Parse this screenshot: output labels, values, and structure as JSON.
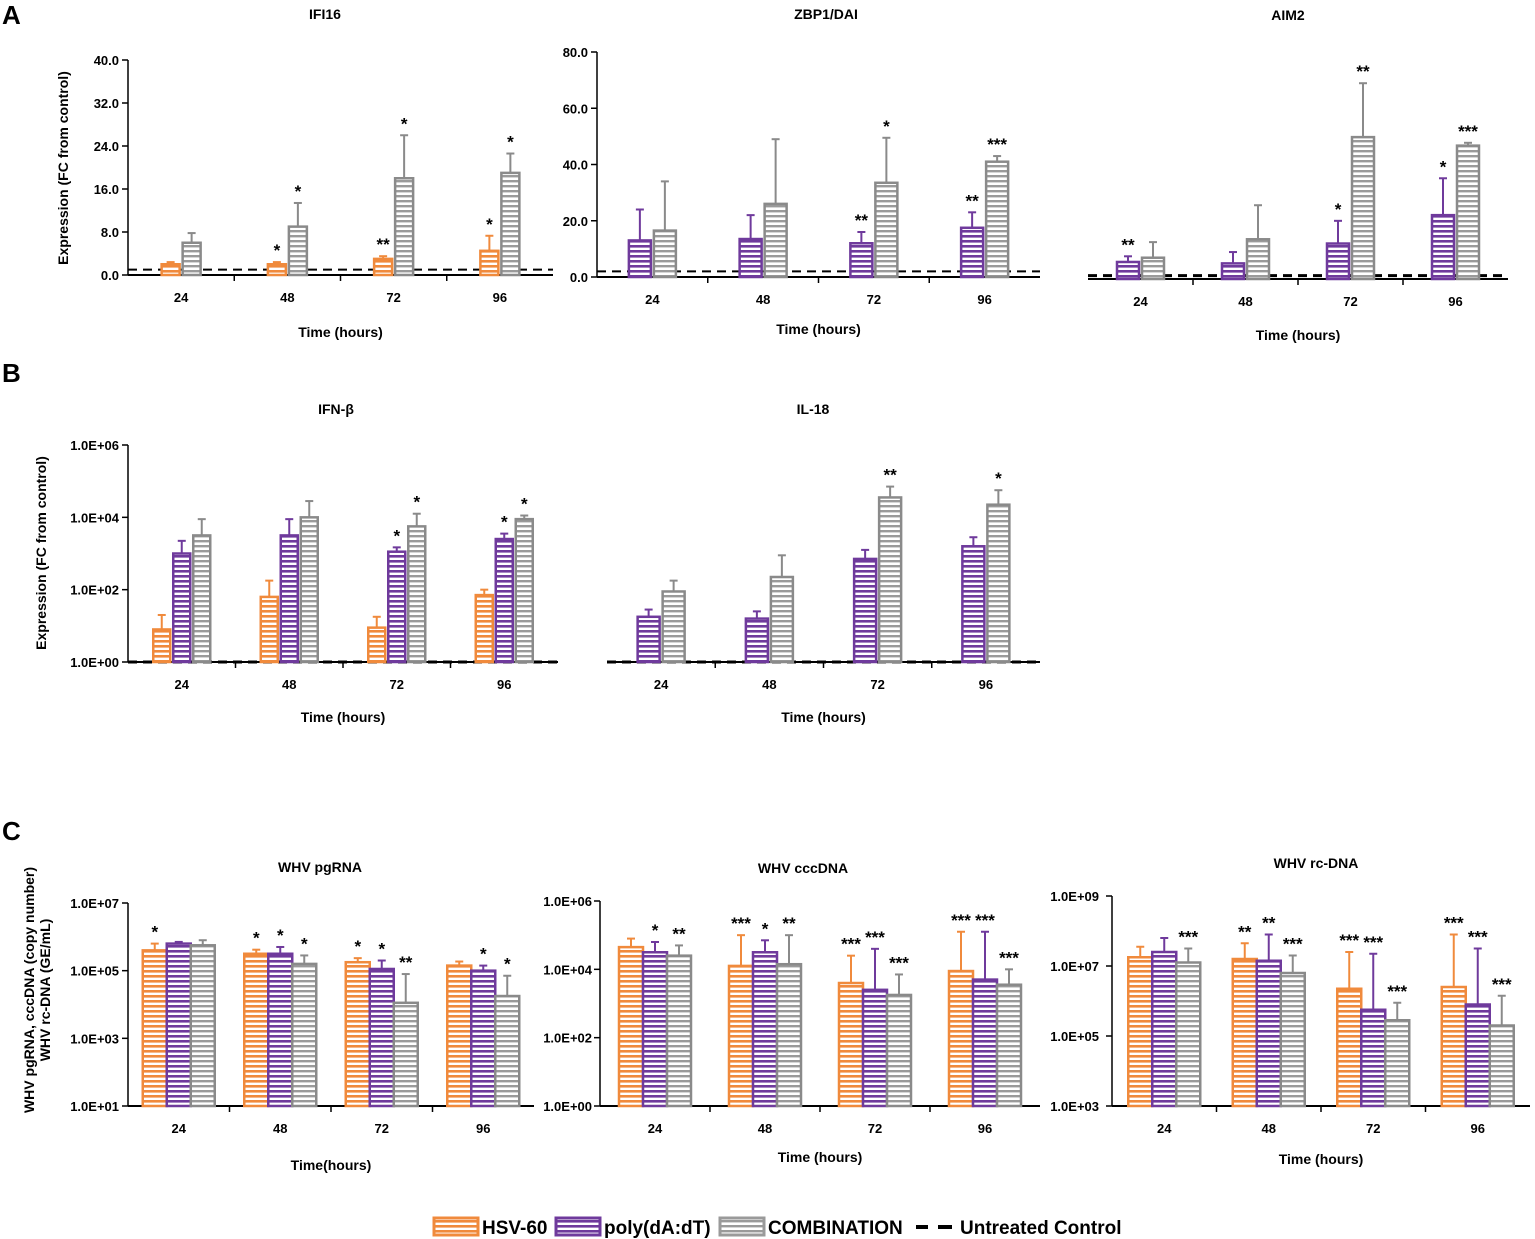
{
  "panels": [
    "A",
    "B",
    "C"
  ],
  "colors": {
    "hsv": "#f08a3c",
    "poly": "#6f3a9c",
    "combo": "#8a8a8a",
    "control": "#000000"
  },
  "legend": [
    {
      "key": "hsv",
      "label": "HSV-60"
    },
    {
      "key": "poly",
      "label": "poly(dA:dT)"
    },
    {
      "key": "combo",
      "label": "COMBINATION"
    },
    {
      "key": "control",
      "label": "Untreated Control"
    }
  ],
  "chart_data": [
    {
      "id": "ifi16",
      "type": "bar",
      "panel": "A",
      "title": "IFI16",
      "scale": "linear",
      "ylim": [
        0,
        40
      ],
      "yticks": [
        "0.0",
        "8.0",
        "16.0",
        "24.0",
        "32.0",
        "40.0"
      ],
      "ylabel": "Expression (FC from control)",
      "xlabel": "Time (hours)",
      "categories": [
        "24",
        "48",
        "72",
        "96"
      ],
      "control": 1.0,
      "series": [
        {
          "name": "HSV-60",
          "key": "hsv",
          "values": [
            2.0,
            2.0,
            3.0,
            4.5
          ],
          "errors": [
            0.4,
            0.4,
            0.5,
            2.8
          ],
          "sig": [
            "",
            "*",
            "**",
            "*"
          ]
        },
        {
          "name": "COMBINATION",
          "key": "combo",
          "values": [
            6.0,
            9.0,
            18.0,
            19.0
          ],
          "errors": [
            1.8,
            4.4,
            8.0,
            3.6
          ],
          "sig": [
            "",
            "*",
            "*",
            "*"
          ]
        }
      ]
    },
    {
      "id": "zbp1",
      "type": "bar",
      "panel": "A",
      "title": "ZBP1/DAI",
      "scale": "linear",
      "ylim": [
        0,
        80
      ],
      "yticks": [
        "0.0",
        "20.0",
        "40.0",
        "60.0",
        "80.0"
      ],
      "ylabel": "",
      "xlabel": "Time (hours)",
      "categories": [
        "24",
        "48",
        "72",
        "96"
      ],
      "control": 2.0,
      "series": [
        {
          "name": "poly(dA:dT)",
          "key": "poly",
          "values": [
            13.0,
            13.5,
            12.0,
            17.5
          ],
          "errors": [
            11.0,
            8.5,
            4.0,
            5.5
          ],
          "sig": [
            "",
            "",
            "**",
            "**"
          ]
        },
        {
          "name": "COMBINATION",
          "key": "combo",
          "values": [
            16.5,
            26.0,
            33.5,
            41.0
          ],
          "errors": [
            17.5,
            23.0,
            16.0,
            2.0
          ],
          "sig": [
            "",
            "",
            "*",
            "***"
          ]
        }
      ]
    },
    {
      "id": "aim2",
      "type": "bar",
      "panel": "A",
      "title": "AIM2",
      "scale": "linear",
      "ylim": [
        0,
        80
      ],
      "yticks": [],
      "ylabel": "",
      "xlabel": "Time (hours)",
      "categories": [
        "24",
        "48",
        "72",
        "96"
      ],
      "control": 1.2,
      "series": [
        {
          "name": "poly(dA:dT)",
          "key": "poly",
          "values": [
            6.0,
            5.5,
            12.5,
            22.5
          ],
          "errors": [
            2.0,
            4.0,
            8.0,
            13.0
          ],
          "sig": [
            "**",
            "",
            "*",
            "*"
          ]
        },
        {
          "name": "COMBINATION",
          "key": "combo",
          "values": [
            7.5,
            14.0,
            50.0,
            47.0
          ],
          "errors": [
            5.5,
            12.0,
            19.0,
            1.0
          ],
          "sig": [
            "",
            "",
            "**",
            "***"
          ]
        }
      ]
    },
    {
      "id": "ifnb",
      "type": "bar",
      "panel": "B",
      "title": "IFN-β",
      "scale": "log",
      "ylim": [
        0,
        6
      ],
      "yticks": [
        "1.0E+00",
        "1.0E+02",
        "1.0E+04",
        "1.0E+06"
      ],
      "ylabel": "Expression (FC from control)",
      "xlabel": "Time (hours)",
      "categories": [
        "24",
        "48",
        "72",
        "96"
      ],
      "control": 0,
      "series": [
        {
          "name": "HSV-60",
          "key": "hsv",
          "values": [
            0.9,
            1.8,
            0.95,
            1.85
          ],
          "errors": [
            0.4,
            0.45,
            0.3,
            0.15
          ],
          "sig": [
            "",
            "",
            "",
            ""
          ]
        },
        {
          "name": "poly(dA:dT)",
          "key": "poly",
          "values": [
            3.0,
            3.5,
            3.05,
            3.4
          ],
          "errors": [
            0.35,
            0.45,
            0.12,
            0.15
          ],
          "sig": [
            "",
            "",
            "*",
            "*"
          ]
        },
        {
          "name": "COMBINATION",
          "key": "combo",
          "values": [
            3.5,
            4.0,
            3.75,
            3.95
          ],
          "errors": [
            0.45,
            0.45,
            0.35,
            0.1
          ],
          "sig": [
            "",
            "",
            "*",
            "*"
          ]
        }
      ]
    },
    {
      "id": "il18",
      "type": "bar",
      "panel": "B",
      "title": "IL-18",
      "scale": "log",
      "ylim": [
        0,
        6
      ],
      "yticks": [],
      "ylabel": "",
      "xlabel": "Time (hours)",
      "categories": [
        "24",
        "48",
        "72",
        "96"
      ],
      "control": 0,
      "series": [
        {
          "name": "poly(dA:dT)",
          "key": "poly",
          "values": [
            1.25,
            1.2,
            2.85,
            3.2
          ],
          "errors": [
            0.2,
            0.2,
            0.25,
            0.25
          ],
          "sig": [
            "",
            "",
            "",
            ""
          ]
        },
        {
          "name": "COMBINATION",
          "key": "combo",
          "values": [
            1.95,
            2.35,
            4.55,
            4.35
          ],
          "errors": [
            0.3,
            0.6,
            0.3,
            0.4
          ],
          "sig": [
            "",
            "",
            "**",
            "*"
          ]
        }
      ]
    },
    {
      "id": "pgrna",
      "type": "bar",
      "panel": "C",
      "title": "WHV pgRNA",
      "scale": "log",
      "ylim": [
        1,
        7
      ],
      "yticks": [
        "1.0E+01",
        "1.0E+03",
        "1.0E+05",
        "1.0E+07"
      ],
      "ylabel": "WHV pgRNA, cccDNA (copy number)\nWHV rc-DNA (GE/mL)",
      "xlabel": "Time(hours)",
      "categories": [
        "24",
        "48",
        "72",
        "96"
      ],
      "control": null,
      "series": [
        {
          "name": "HSV-60",
          "key": "hsv",
          "values": [
            5.6,
            5.5,
            5.25,
            5.15
          ],
          "errors": [
            0.2,
            0.12,
            0.12,
            0.12
          ],
          "sig": [
            "*",
            "*",
            "*",
            ""
          ]
        },
        {
          "name": "poly(dA:dT)",
          "key": "poly",
          "values": [
            5.8,
            5.5,
            5.05,
            5.0
          ],
          "errors": [
            0.05,
            0.2,
            0.25,
            0.15
          ],
          "sig": [
            "",
            "*",
            "*",
            "*"
          ]
        },
        {
          "name": "COMBINATION",
          "key": "combo",
          "values": [
            5.75,
            5.2,
            4.05,
            4.25
          ],
          "errors": [
            0.15,
            0.25,
            0.85,
            0.6
          ],
          "sig": [
            "",
            "*",
            "**",
            "*"
          ]
        }
      ]
    },
    {
      "id": "cccdna",
      "type": "bar",
      "panel": "C",
      "title": "WHV cccDNA",
      "scale": "log",
      "ylim": [
        0,
        6
      ],
      "yticks": [
        "1.0E+00",
        "1.0E+02",
        "1.0E+04",
        "1.0E+06"
      ],
      "ylabel": "",
      "xlabel": "Time (hours)",
      "categories": [
        "24",
        "48",
        "72",
        "96"
      ],
      "control": null,
      "series": [
        {
          "name": "HSV-60",
          "key": "hsv",
          "values": [
            4.65,
            4.1,
            3.6,
            3.95
          ],
          "errors": [
            0.25,
            0.9,
            0.8,
            1.15
          ],
          "sig": [
            "",
            "***",
            "***",
            "***"
          ]
        },
        {
          "name": "poly(dA:dT)",
          "key": "poly",
          "values": [
            4.5,
            4.5,
            3.4,
            3.7
          ],
          "errors": [
            0.3,
            0.35,
            1.2,
            1.4
          ],
          "sig": [
            "*",
            "*",
            "***",
            "***"
          ]
        },
        {
          "name": "COMBINATION",
          "key": "combo",
          "values": [
            4.4,
            4.15,
            3.25,
            3.55
          ],
          "errors": [
            0.3,
            0.85,
            0.6,
            0.45
          ],
          "sig": [
            "**",
            "**",
            "***",
            "***"
          ]
        }
      ]
    },
    {
      "id": "rcdna",
      "type": "bar",
      "panel": "C",
      "title": "WHV rc-DNA",
      "scale": "log",
      "ylim": [
        3,
        9
      ],
      "yticks": [
        "1.0E+03",
        "1.0E+05",
        "1.0E+07",
        "1.0E+09"
      ],
      "ylabel": "",
      "xlabel": "Time (hours)",
      "categories": [
        "24",
        "48",
        "72",
        "96"
      ],
      "control": null,
      "series": [
        {
          "name": "HSV-60",
          "key": "hsv",
          "values": [
            7.25,
            7.2,
            6.35,
            6.4
          ],
          "errors": [
            0.3,
            0.45,
            1.05,
            1.5
          ],
          "sig": [
            "",
            "**",
            "***",
            "***"
          ]
        },
        {
          "name": "poly(dA:dT)",
          "key": "poly",
          "values": [
            7.4,
            7.15,
            5.75,
            5.9
          ],
          "errors": [
            0.4,
            0.75,
            1.6,
            1.6
          ],
          "sig": [
            "",
            "**",
            "***",
            "***"
          ]
        },
        {
          "name": "COMBINATION",
          "key": "combo",
          "values": [
            7.1,
            6.8,
            5.45,
            5.3
          ],
          "errors": [
            0.4,
            0.5,
            0.5,
            0.85
          ],
          "sig": [
            "***",
            "***",
            "***",
            "***"
          ]
        }
      ]
    }
  ]
}
